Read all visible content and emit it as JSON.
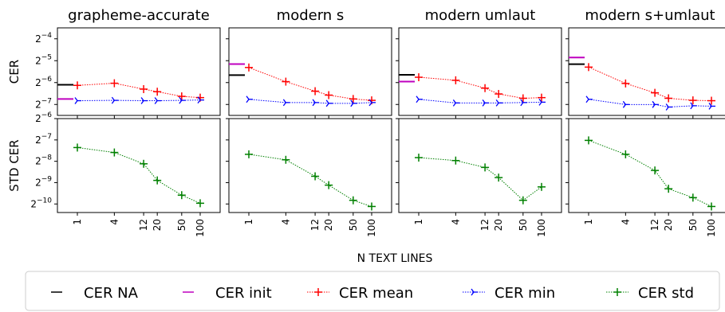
{
  "chart_data": {
    "type": "line",
    "xlabel": "N TEXT LINES",
    "x_ticks": [
      "1",
      "4",
      "12",
      "20",
      "50",
      "100"
    ],
    "x": [
      1,
      4,
      12,
      20,
      50,
      100
    ],
    "x_scale": "log",
    "row_labels": [
      "CER",
      "STD CER"
    ],
    "y_scale": "log2",
    "top_row_ylim_log2": [
      -7.5,
      -3.5
    ],
    "bottom_row_ylim_log2": [
      -10.4,
      -6
    ],
    "top_row_yticks": [
      "2^-4",
      "2^-5",
      "2^-6",
      "2^-7"
    ],
    "bottom_row_yticks": [
      "2^-6",
      "2^-7",
      "2^-8",
      "2^-9",
      "2^-10"
    ],
    "legend": {
      "position": "bottom",
      "items": [
        {
          "label": "CER NA",
          "color": "#000000",
          "style": "hline"
        },
        {
          "label": "CER init",
          "color": "#bf00bf",
          "style": "hline"
        },
        {
          "label": "CER mean",
          "color": "#ff0000",
          "style": "dotted-plus"
        },
        {
          "label": "CER min",
          "color": "#0000ff",
          "style": "dotted-tri"
        },
        {
          "label": "CER std",
          "color": "#008000",
          "style": "dotted-plus"
        }
      ]
    },
    "panels": [
      {
        "title": "grapheme-accurate",
        "cer_na": 0.0146,
        "cer_init": 0.0093,
        "cer_mean": [
          0.0143,
          0.0153,
          0.0127,
          0.0117,
          0.0101,
          0.0097
        ],
        "cer_min": [
          0.0088,
          0.0089,
          0.0088,
          0.0088,
          0.0089,
          0.009
        ],
        "cer_std": [
          0.0061,
          0.0052,
          0.0036,
          0.0021,
          0.0013,
          0.001
        ]
      },
      {
        "title": "modern s",
        "cer_na": 0.0198,
        "cer_init": 0.0281,
        "cer_mean": [
          0.0252,
          0.0161,
          0.0119,
          0.0105,
          0.0093,
          0.0089
        ],
        "cer_min": [
          0.0092,
          0.0083,
          0.0083,
          0.0081,
          0.0081,
          0.0083
        ],
        "cer_std": [
          0.0049,
          0.0041,
          0.0024,
          0.0018,
          0.0011,
          0.0009
        ]
      },
      {
        "title": "modern umlaut",
        "cer_na": 0.02,
        "cer_init": 0.0161,
        "cer_mean": [
          0.0185,
          0.0168,
          0.0131,
          0.0109,
          0.0095,
          0.0097
        ],
        "cer_min": [
          0.0092,
          0.0082,
          0.0082,
          0.0082,
          0.0083,
          0.0084
        ],
        "cer_std": [
          0.0044,
          0.004,
          0.0032,
          0.0023,
          0.0011,
          0.0017
        ]
      },
      {
        "title": "modern s+umlaut",
        "cer_na": 0.028,
        "cer_init": 0.0346,
        "cer_mean": [
          0.0255,
          0.0152,
          0.0113,
          0.0095,
          0.0089,
          0.0088
        ],
        "cer_min": [
          0.0092,
          0.0078,
          0.0078,
          0.0072,
          0.0075,
          0.0074
        ],
        "cer_std": [
          0.0077,
          0.0049,
          0.0029,
          0.0016,
          0.0012,
          0.0009
        ]
      }
    ]
  }
}
